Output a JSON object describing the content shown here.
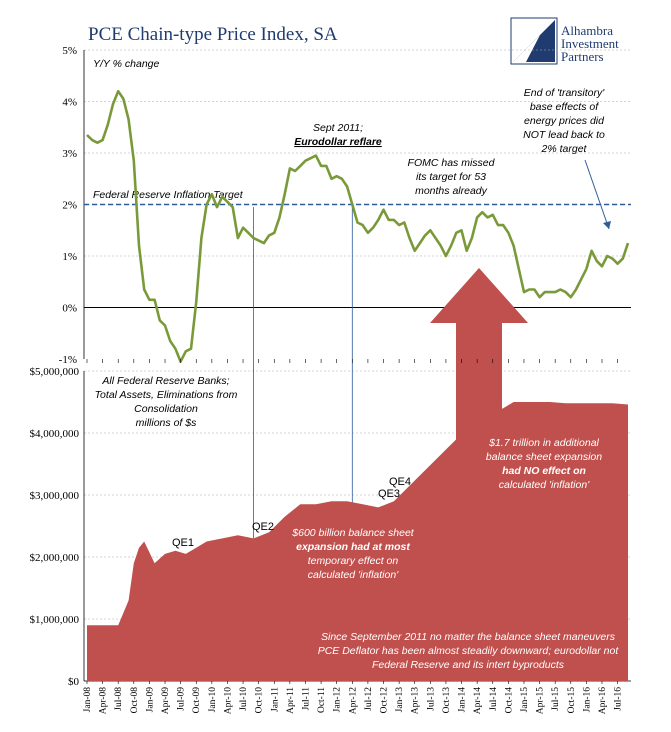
{
  "title": "PCE Chain-type Price Index, SA",
  "logo": {
    "lines": [
      "Alhambra",
      "Investment",
      "Partners"
    ]
  },
  "colors": {
    "pce_line": "#7a9a3a",
    "balance_area": "#c0504d",
    "target_line": "#2e5e9a",
    "title": "#1f3b70"
  },
  "top_panel": {
    "ylabel": "Y/Y % change",
    "yticks": [
      "5%",
      "4%",
      "3%",
      "2%",
      "1%",
      "0%",
      "-1%"
    ],
    "target_label": "Federal Reserve Inflation Target",
    "annotations": {
      "sept2011": [
        "Sept 2011;",
        "Eurodollar  reflare"
      ],
      "fomc": [
        "FOMC has missed",
        "its target for 53",
        "months already"
      ],
      "transitory": [
        "End of 'transitory'",
        "base effects of",
        "energy prices did",
        "NOT lead back to",
        "2% target"
      ]
    }
  },
  "bottom_panel": {
    "ylabel": [
      "All Federal Reserve Banks;",
      "Total Assets, Eliminations from",
      "Consolidation",
      "millions of $s"
    ],
    "yticks": [
      "$5,000,000",
      "$4,000,000",
      "$3,000,000",
      "$2,000,000",
      "$1,000,000",
      "$0"
    ],
    "qe_labels": [
      "QE1",
      "QE2",
      "QE3",
      "QE4"
    ],
    "annotations": {
      "600b": [
        "$600 billion balance sheet",
        "expansion had at most",
        "temporary effect on",
        "calculated 'inflation'"
      ],
      "1_7t": [
        "$1.7 trillion in additional",
        "balance sheet expansion",
        "had NO effect on",
        "calculated 'inflation'"
      ],
      "since2011": [
        "Since September 2011 no matter the balance sheet maneuvers",
        "PCE Deflator has been almost steadily downward; eurodollar not",
        "Federal Reserve and its intert byproducts"
      ]
    }
  },
  "x_tick_labels": [
    "Jan-08",
    "Apr-08",
    "Jul-08",
    "Oct-08",
    "Jan-09",
    "Apr-09",
    "Jul-09",
    "Oct-09",
    "Jan-10",
    "Apr-10",
    "Jul-10",
    "Oct-10",
    "Jan-11",
    "Apr-11",
    "Jul-11",
    "Oct-11",
    "Jan-12",
    "Apr-12",
    "Jul-12",
    "Oct-12",
    "Jan-13",
    "Apr-13",
    "Jul-13",
    "Oct-13",
    "Jan-14",
    "Apr-14",
    "Jul-14",
    "Oct-14",
    "Jan-15",
    "Apr-15",
    "Jul-15",
    "Oct-15",
    "Jan-16",
    "Apr-16",
    "Jul-16"
  ],
  "chart_data": [
    {
      "type": "line",
      "ylim": [
        -1,
        5
      ],
      "ylabel": "Y/Y % change",
      "target": 2,
      "x": [
        "2008-01",
        "2008-02",
        "2008-03",
        "2008-04",
        "2008-05",
        "2008-06",
        "2008-07",
        "2008-08",
        "2008-09",
        "2008-10",
        "2008-11",
        "2008-12",
        "2009-01",
        "2009-02",
        "2009-03",
        "2009-04",
        "2009-05",
        "2009-06",
        "2009-07",
        "2009-08",
        "2009-09",
        "2009-10",
        "2009-11",
        "2009-12",
        "2010-01",
        "2010-02",
        "2010-03",
        "2010-04",
        "2010-05",
        "2010-06",
        "2010-07",
        "2010-08",
        "2010-09",
        "2010-10",
        "2010-11",
        "2010-12",
        "2011-01",
        "2011-02",
        "2011-03",
        "2011-04",
        "2011-05",
        "2011-06",
        "2011-07",
        "2011-08",
        "2011-09",
        "2011-10",
        "2011-11",
        "2011-12",
        "2012-01",
        "2012-02",
        "2012-03",
        "2012-04",
        "2012-05",
        "2012-06",
        "2012-07",
        "2012-08",
        "2012-09",
        "2012-10",
        "2012-11",
        "2012-12",
        "2013-01",
        "2013-02",
        "2013-03",
        "2013-04",
        "2013-05",
        "2013-06",
        "2013-07",
        "2013-08",
        "2013-09",
        "2013-10",
        "2013-11",
        "2013-12",
        "2014-01",
        "2014-02",
        "2014-03",
        "2014-04",
        "2014-05",
        "2014-06",
        "2014-07",
        "2014-08",
        "2014-09",
        "2014-10",
        "2014-11",
        "2014-12",
        "2015-01",
        "2015-02",
        "2015-03",
        "2015-04",
        "2015-05",
        "2015-06",
        "2015-07",
        "2015-08",
        "2015-09",
        "2015-10",
        "2015-11",
        "2015-12",
        "2016-01",
        "2016-02",
        "2016-03",
        "2016-04",
        "2016-05",
        "2016-06",
        "2016-07",
        "2016-08",
        "2016-09"
      ],
      "values": [
        3.35,
        3.25,
        3.2,
        3.25,
        3.55,
        3.95,
        4.2,
        4.05,
        3.65,
        2.85,
        1.2,
        0.35,
        0.15,
        0.15,
        -0.25,
        -0.35,
        -0.65,
        -0.8,
        -1.05,
        -0.85,
        -0.8,
        0.1,
        1.35,
        2.0,
        2.2,
        1.95,
        2.15,
        2.05,
        1.95,
        1.35,
        1.55,
        1.45,
        1.35,
        1.3,
        1.25,
        1.4,
        1.45,
        1.75,
        2.2,
        2.7,
        2.65,
        2.75,
        2.85,
        2.9,
        2.95,
        2.75,
        2.75,
        2.5,
        2.55,
        2.5,
        2.35,
        2.0,
        1.65,
        1.6,
        1.45,
        1.55,
        1.7,
        1.9,
        1.7,
        1.7,
        1.6,
        1.65,
        1.35,
        1.1,
        1.25,
        1.4,
        1.5,
        1.35,
        1.2,
        1.0,
        1.2,
        1.45,
        1.5,
        1.1,
        1.35,
        1.75,
        1.85,
        1.75,
        1.8,
        1.6,
        1.6,
        1.45,
        1.2,
        0.75,
        0.3,
        0.35,
        0.35,
        0.2,
        0.3,
        0.3,
        0.3,
        0.35,
        0.3,
        0.2,
        0.35,
        0.55,
        0.75,
        1.1,
        0.9,
        0.8,
        1.0,
        0.95,
        0.85,
        0.95,
        1.25
      ]
    },
    {
      "type": "area",
      "ylim": [
        0,
        5000000
      ],
      "x": [
        "2008-01",
        "2008-07",
        "2008-09",
        "2008-10",
        "2008-11",
        "2008-12",
        "2009-02",
        "2009-04",
        "2009-06",
        "2009-08",
        "2009-10",
        "2009-12",
        "2010-03",
        "2010-06",
        "2010-09",
        "2010-12",
        "2011-03",
        "2011-06",
        "2011-09",
        "2011-12",
        "2012-03",
        "2012-06",
        "2012-09",
        "2012-12",
        "2013-03",
        "2013-06",
        "2013-09",
        "2013-12",
        "2014-03",
        "2014-06",
        "2014-09",
        "2014-11",
        "2015-03",
        "2015-06",
        "2015-09",
        "2015-12",
        "2016-03",
        "2016-06",
        "2016-09"
      ],
      "values": [
        900000,
        900000,
        1300000,
        1900000,
        2150000,
        2250000,
        1900000,
        2050000,
        2100000,
        2050000,
        2150000,
        2250000,
        2300000,
        2350000,
        2300000,
        2400000,
        2650000,
        2850000,
        2850000,
        2900000,
        2900000,
        2850000,
        2800000,
        2900000,
        3150000,
        3400000,
        3650000,
        3900000,
        4100000,
        4300000,
        4400000,
        4500000,
        4500000,
        4500000,
        4480000,
        4480000,
        4480000,
        4480000,
        4460000
      ]
    }
  ]
}
